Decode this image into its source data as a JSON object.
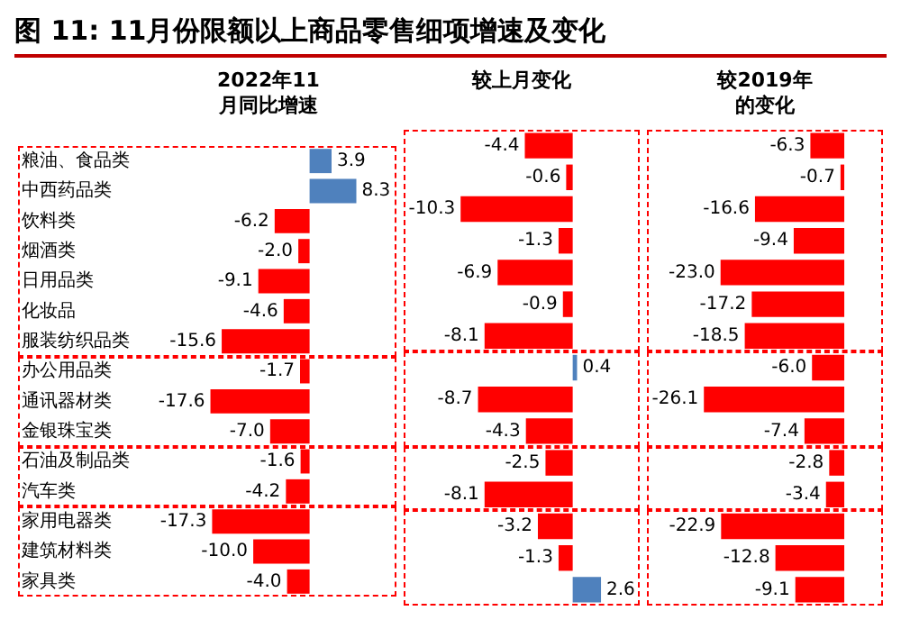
{
  "chart_data": [
    {
      "type": "other",
      "title": "图 11: 11月份限额以上商品零售细项增速及变化"
    },
    {
      "type": "bar",
      "orientation": "horizontal",
      "title": "2022年11月同比增速",
      "tick_labels": "y",
      "categories": [
        "粮油、食品类",
        "中西药品类",
        "饮料类",
        "烟酒类",
        "日用品类",
        "化妆品",
        "服装纺织品类",
        "办公用品类",
        "通讯器材类",
        "金银珠宝类",
        "石油及制品类",
        "汽车类",
        "家用电器类",
        "建筑材料类",
        "家具类"
      ],
      "values": [
        3.9,
        8.3,
        -6.2,
        -2.0,
        -9.1,
        -4.6,
        -15.6,
        -1.7,
        -17.6,
        -7.0,
        -1.6,
        -4.2,
        -17.3,
        -10.0,
        -4.0
      ],
      "value_labels": [
        "3.9",
        "8.3",
        "-6.2",
        "-2.0",
        "-9.1",
        "-4.6",
        "-15.6",
        "-1.7",
        "-17.6",
        "-7.0",
        "-1.6",
        "-4.2",
        "-17.3",
        "-10.0",
        "-4.0"
      ],
      "colors": [
        "#4f81bd",
        "#4f81bd",
        "#ff0000",
        "#ff0000",
        "#ff0000",
        "#ff0000",
        "#ff0000",
        "#ff0000",
        "#ff0000",
        "#ff0000",
        "#ff0000",
        "#ff0000",
        "#ff0000",
        "#ff0000",
        "#ff0000"
      ]
    },
    {
      "type": "bar",
      "orientation": "horizontal",
      "title": "较上月变化",
      "tick_labels": false,
      "categories": [
        null,
        null,
        null,
        null,
        null,
        null,
        null,
        null,
        null,
        null,
        null,
        null,
        null,
        null,
        null
      ],
      "values": [
        -4.4,
        -0.6,
        -10.3,
        -1.3,
        -6.9,
        -0.9,
        -8.1,
        0.4,
        -8.7,
        -4.3,
        -2.5,
        -8.1,
        -3.2,
        -1.3,
        2.6
      ],
      "value_labels": [
        "-4.4",
        "-0.6",
        "-10.3",
        "-1.3",
        "-6.9",
        "-0.9",
        "-8.1",
        "0.4",
        "-8.7",
        "-4.3",
        "-2.5",
        "-8.1",
        "-3.2",
        "-1.3",
        "2.6"
      ],
      "colors": [
        "#ff0000",
        "#ff0000",
        "#ff0000",
        "#ff0000",
        "#ff0000",
        "#ff0000",
        "#ff0000",
        "#4f81bd",
        "#ff0000",
        "#ff0000",
        "#ff0000",
        "#ff0000",
        "#ff0000",
        "#ff0000",
        "#4f81bd"
      ]
    },
    {
      "type": "bar",
      "orientation": "horizontal",
      "title": "较2019年的变化",
      "tick_labels": false,
      "categories": [
        null,
        null,
        null,
        null,
        null,
        null,
        null,
        null,
        null,
        null,
        null,
        null,
        null,
        null,
        null
      ],
      "values": [
        -6.3,
        -0.7,
        -16.6,
        -9.4,
        -23.0,
        -17.2,
        -18.5,
        -6.0,
        -26.1,
        -7.4,
        -2.8,
        -3.4,
        -22.9,
        -12.8,
        -9.1
      ],
      "value_labels": [
        "-6.3",
        "-0.7",
        "-16.6",
        "-9.4",
        "-23.0",
        "-17.2",
        "-18.5",
        "-6.0",
        "-26.1",
        "-7.4",
        "-2.8",
        "-3.4",
        "-22.9",
        "-12.8",
        "-9.1"
      ],
      "colors": [
        "#ff0000",
        "#ff0000",
        "#ff0000",
        "#ff0000",
        "#ff0000",
        "#ff0000",
        "#ff0000",
        "#ff0000",
        "#ff0000",
        "#ff0000",
        "#ff0000",
        "#ff0000",
        "#ff0000",
        "#ff0000",
        "#ff0000"
      ]
    }
  ]
}
